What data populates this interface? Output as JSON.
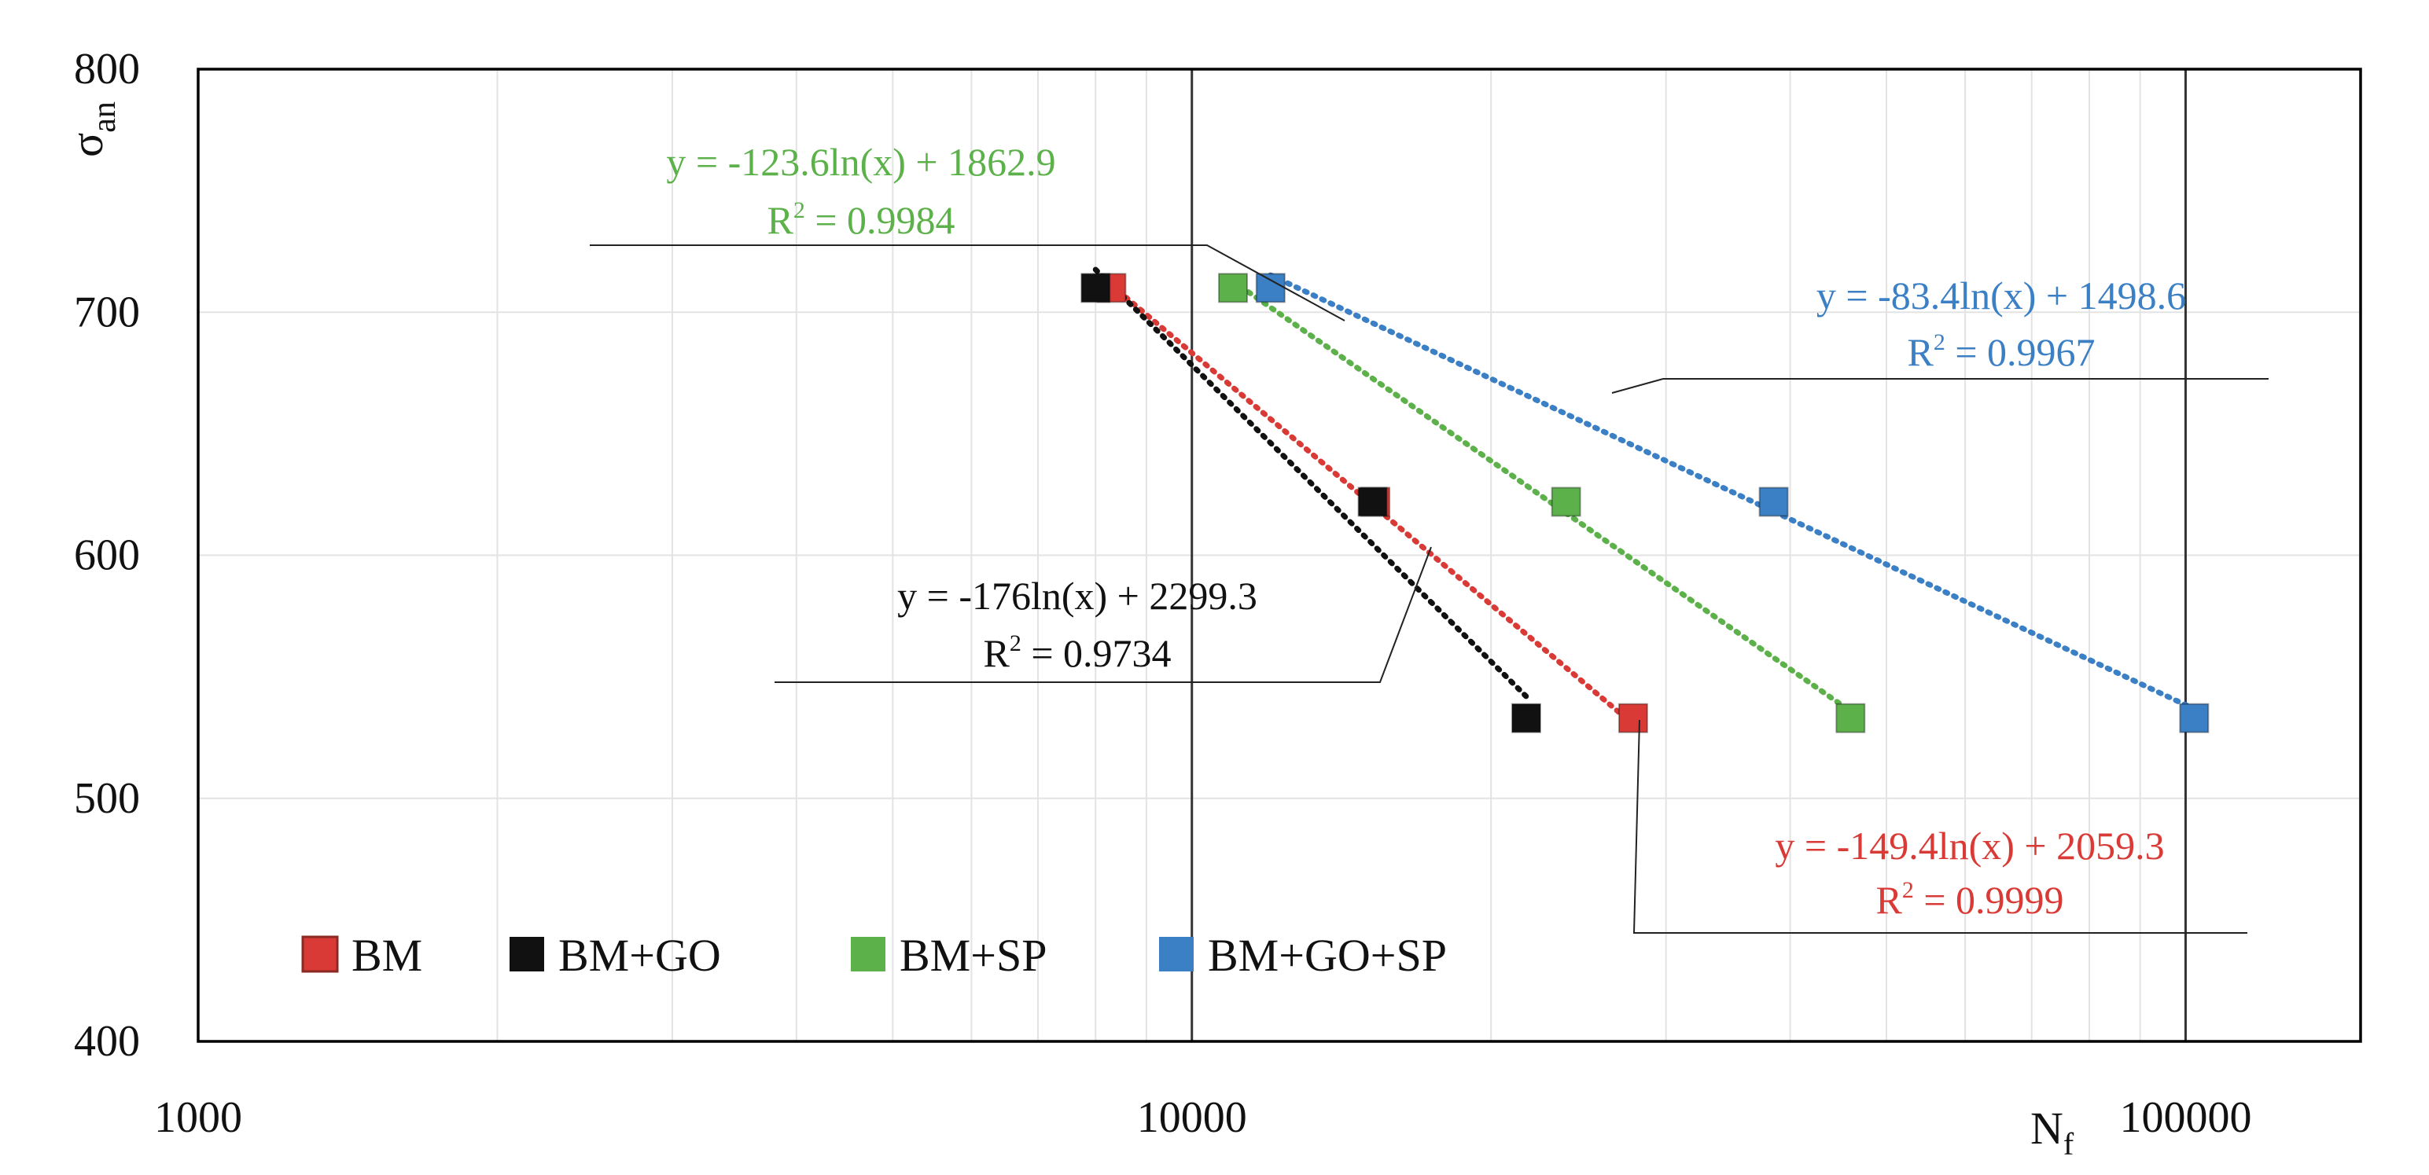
{
  "chart_data": {
    "type": "scatter",
    "xscale": "log",
    "xlim": [
      1000,
      150000
    ],
    "ylim": [
      400,
      800
    ],
    "x_ticks": [
      {
        "value": 1000,
        "label": "1000"
      },
      {
        "value": 10000,
        "label": "10000"
      },
      {
        "value": 100000,
        "label": "100000"
      }
    ],
    "y_ticks": [
      {
        "value": 400,
        "label": "400"
      },
      {
        "value": 500,
        "label": "500"
      },
      {
        "value": 600,
        "label": "600"
      },
      {
        "value": 700,
        "label": "700"
      },
      {
        "value": 800,
        "label": "800"
      }
    ],
    "xlabel": {
      "main": "N",
      "sub": "f"
    },
    "ylabel": {
      "main": "σ",
      "sub": "an"
    },
    "legend_position": "bottom-left",
    "series": [
      {
        "name": "BM",
        "color": "#d93a35",
        "points": [
          [
            8300,
            710
          ],
          [
            15300,
            622
          ],
          [
            27800,
            533
          ]
        ],
        "trend": {
          "a": -149.4,
          "b": 2059.3,
          "x_from": 8300,
          "x_to": 27800
        },
        "equation": "y = -149.4ln(x) + 2059.3",
        "r2_label": "R",
        "r2_exp": "2",
        "r2_value": " = 0.9999"
      },
      {
        "name": "BM+GO",
        "color": "#111111",
        "points": [
          [
            8000,
            710
          ],
          [
            15200,
            622
          ],
          [
            21700,
            533
          ]
        ],
        "trend": {
          "a": -176,
          "b": 2299.3,
          "x_from": 8000,
          "x_to": 21700
        },
        "equation": "y = -176ln(x) + 2299.3",
        "r2_label": "R",
        "r2_exp": "2",
        "r2_value": " = 0.9734"
      },
      {
        "name": "BM+SP",
        "color": "#5cb14a",
        "points": [
          [
            11000,
            710
          ],
          [
            23800,
            622
          ],
          [
            46000,
            533
          ]
        ],
        "trend": {
          "a": -123.6,
          "b": 1862.9,
          "x_from": 11000,
          "x_to": 46000
        },
        "equation": "y = -123.6ln(x) + 1862.9",
        "r2_label": "R",
        "r2_exp": "2",
        "r2_value": " = 0.9984"
      },
      {
        "name": "BM+GO+SP",
        "color": "#3b7fc4",
        "points": [
          [
            12000,
            710
          ],
          [
            38500,
            622
          ],
          [
            102000,
            533
          ]
        ],
        "trend": {
          "a": -83.4,
          "b": 1498.6,
          "x_from": 12000,
          "x_to": 102000
        },
        "equation": "y = -83.4ln(x) + 1498.6",
        "r2_label": "R",
        "r2_exp": "2",
        "r2_value": " = 0.9967"
      }
    ]
  }
}
